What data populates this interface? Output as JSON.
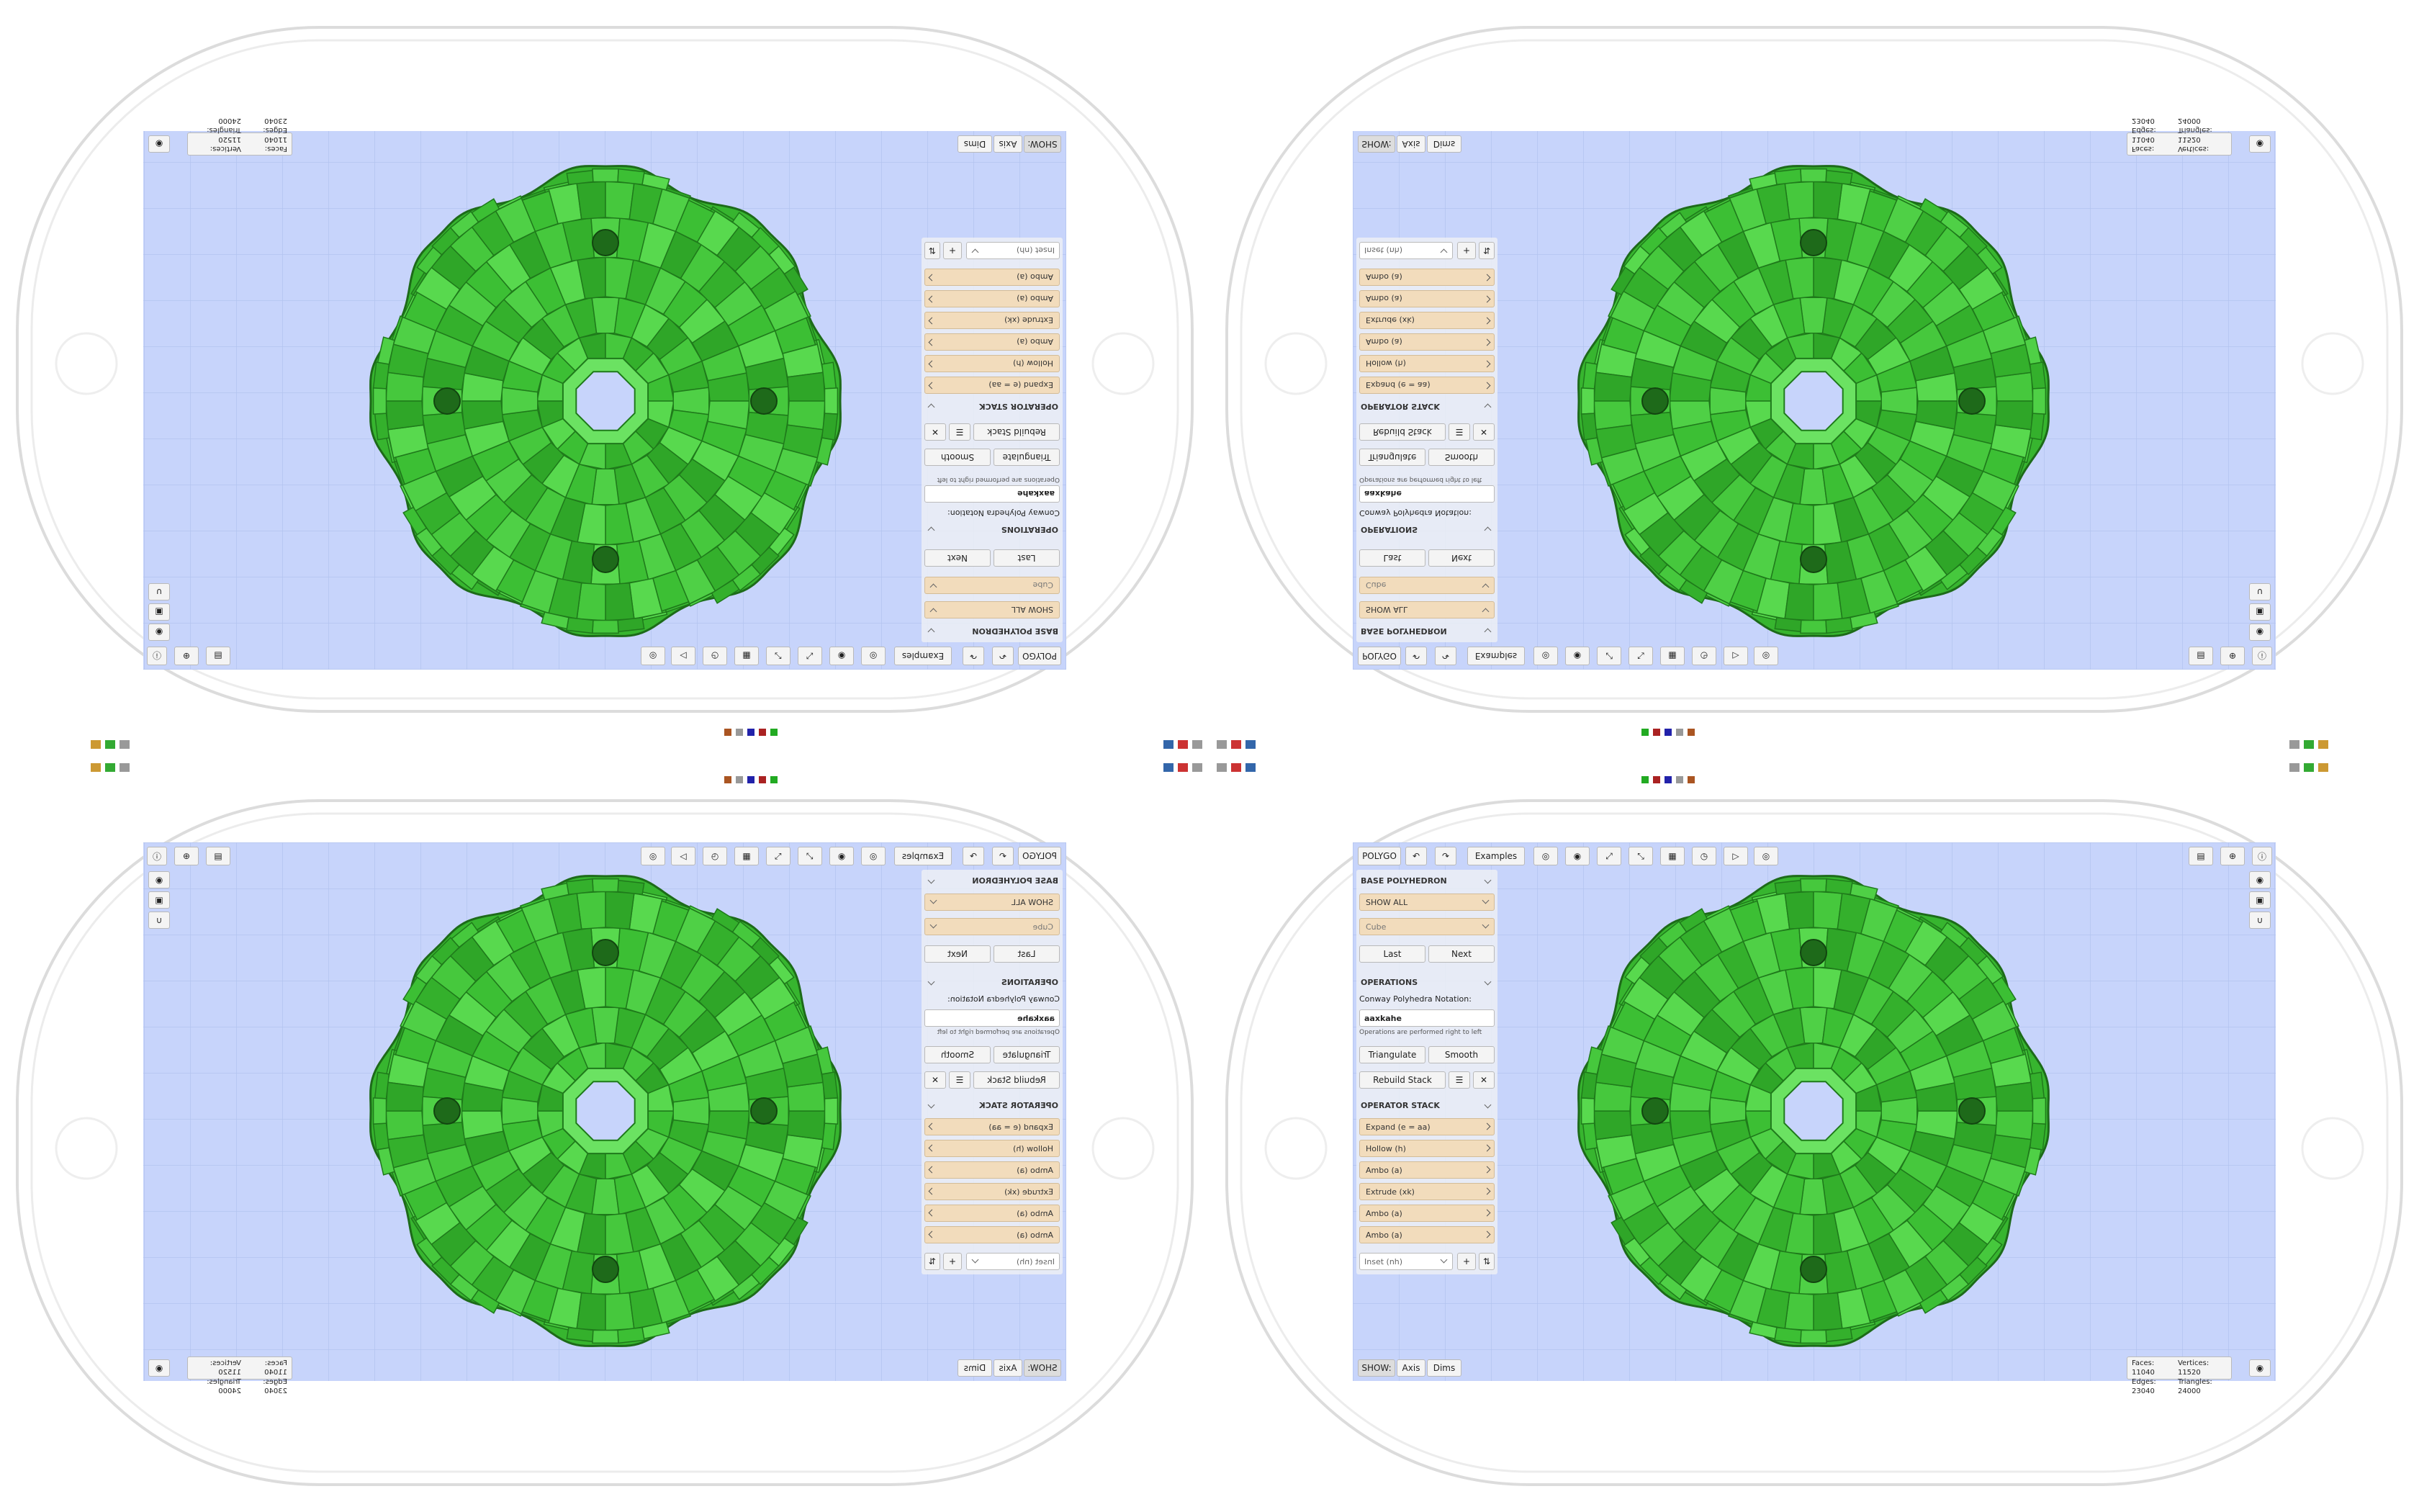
{
  "toolbar": {
    "app": "POLYGO",
    "examples": "Examples"
  },
  "base_polyhedron": {
    "header": "BASE POLYHEDRON",
    "filter": "SHOW ALL",
    "shape": "Cube",
    "prev": "Last",
    "next": "Next"
  },
  "operations": {
    "header": "OPERATIONS",
    "notation_label": "Conway Polyhedra Notation:",
    "notation": "aaxkahe",
    "note": "Operations are performed right to left",
    "triangulate": "Triangulate",
    "smooth": "Smooth",
    "rebuild": "Rebuild Stack"
  },
  "operator_stack": {
    "header": "OPERATOR STACK",
    "items": [
      "Expand (e = aa)",
      "Hollow (h)",
      "Ambo (a)",
      "Extrude (xk)",
      "Ambo (a)",
      "Ambo (a)"
    ],
    "add_select": "Inset (nh)"
  },
  "view": {
    "show": "SHOW:",
    "axis": "Axis",
    "dims": "Dims"
  },
  "stats": {
    "faces": "Faces: 11040",
    "vertices": "Vertices: 11520",
    "edges": "Edges: 23040",
    "triangles": "Triangles: 24000"
  }
}
